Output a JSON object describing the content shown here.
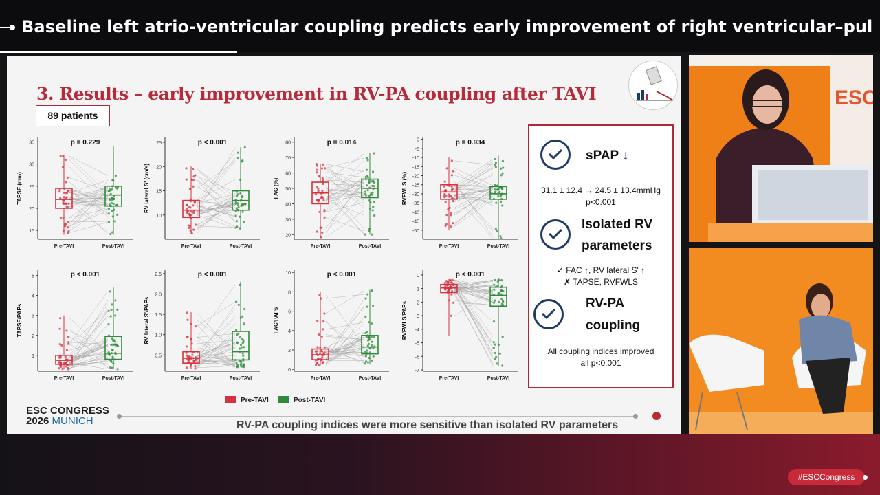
{
  "header": {
    "title": "Baseline left atrio-ventricular coupling predicts early improvement of right ventricular–pulmonary …"
  },
  "slide": {
    "title": "3. Results – early improvement in RV-PA coupling after TAVI",
    "patients": "89 patients",
    "legend": {
      "pre": "Pre-TAVI",
      "post": "Post-TAVI"
    },
    "footer_brand_line1": "ESC CONGRESS",
    "footer_brand_year": "2026",
    "footer_brand_city": "MUNICH",
    "footer_text": "RV-PA coupling indices were more sensitive than isolated RV parameters",
    "summary": {
      "h1": "sPAP",
      "h1_arrow": "↓",
      "t1a": "31.1 ± 12.4 → 24.5 ± 13.4mmHg",
      "t1b": "p<0.001",
      "h2a": "Isolated RV",
      "h2b": "parameters",
      "t2a": "✓ FAC ↑, RV lateral S' ↑",
      "t2b": "✗ TAPSE, RVFWLS",
      "h3a": "RV-PA",
      "h3b": "coupling",
      "t3a": "All coupling indices improved",
      "t3b": "all p<0.001"
    }
  },
  "colors": {
    "pre": "#d6323f",
    "post": "#2f8a3a",
    "accent": "#b52b3a",
    "navy": "#1e3a66"
  },
  "hashtag": "#ESCCongress",
  "chart_data": [
    {
      "type": "scatter",
      "title": "p = 0.229",
      "ylabel": "TAPSE (mm)",
      "categories": [
        "Pre-TAVI",
        "Post-TAVI"
      ],
      "yticks": [
        "15",
        "20",
        "25",
        "30",
        "35"
      ],
      "ylim": [
        13,
        36
      ],
      "box": [
        {
          "q1": 20,
          "med": 22,
          "q3": 24.5,
          "lo": 14,
          "hi": 32
        },
        {
          "q1": 20.5,
          "med": 23,
          "q3": 25,
          "lo": 14,
          "hi": 34
        }
      ]
    },
    {
      "type": "scatter",
      "title": "p < 0.001",
      "ylabel": "RV lateral S' (cm/s)",
      "categories": [
        "Pre-TAVI",
        "Post-TAVI"
      ],
      "yticks": [
        "10",
        "15",
        "20",
        "25"
      ],
      "ylim": [
        5,
        26
      ],
      "box": [
        {
          "q1": 9.5,
          "med": 11,
          "q3": 13,
          "lo": 6,
          "hi": 20
        },
        {
          "q1": 11,
          "med": 13,
          "q3": 15,
          "lo": 7,
          "hi": 24
        }
      ]
    },
    {
      "type": "scatter",
      "title": "p = 0.014",
      "ylabel": "FAC (%)",
      "categories": [
        "Pre-TAVI",
        "Post-TAVI"
      ],
      "yticks": [
        "20",
        "30",
        "40",
        "50",
        "60",
        "70",
        "80"
      ],
      "ylim": [
        17,
        83
      ],
      "box": [
        {
          "q1": 40,
          "med": 47,
          "q3": 54,
          "lo": 18,
          "hi": 66
        },
        {
          "q1": 44,
          "med": 50,
          "q3": 56,
          "lo": 20,
          "hi": 73
        }
      ]
    },
    {
      "type": "scatter",
      "title": "p = 0.934",
      "ylabel": "RVFWLS (%)",
      "categories": [
        "Pre-TAVI",
        "Post-TAVI"
      ],
      "yticks": [
        "0",
        "-5",
        "-10",
        "-15",
        "-20",
        "-25",
        "-30",
        "-35",
        "-40",
        "-45",
        "-50"
      ],
      "ylim": [
        -55,
        1
      ],
      "box": [
        {
          "q1": -33,
          "med": -29,
          "q3": -25,
          "lo": -50,
          "hi": -10
        },
        {
          "q1": -33,
          "med": -30,
          "q3": -26,
          "lo": -55,
          "hi": -9
        }
      ]
    },
    {
      "type": "scatter",
      "title": "p < 0.001",
      "ylabel": "TAPSE/PAPs",
      "categories": [
        "Pre-TAVI",
        "Post-TAVI"
      ],
      "yticks": [
        "1",
        "2",
        "3",
        "4",
        "5"
      ],
      "ylim": [
        0.2,
        5.3
      ],
      "box": [
        {
          "q1": 0.55,
          "med": 0.75,
          "q3": 1.0,
          "lo": 0.3,
          "hi": 3.0
        },
        {
          "q1": 0.8,
          "med": 1.1,
          "q3": 1.95,
          "lo": 0.3,
          "hi": 4.4
        }
      ]
    },
    {
      "type": "scatter",
      "title": "p < 0.001",
      "ylabel": "RV lateral S'/PAPs",
      "categories": [
        "Pre-TAVI",
        "Post-TAVI"
      ],
      "yticks": [
        "0.5",
        "1.0",
        "1.5",
        "2.0",
        "2.5"
      ],
      "ylim": [
        0.1,
        2.6
      ],
      "box": [
        {
          "q1": 0.3,
          "med": 0.42,
          "q3": 0.58,
          "lo": 0.15,
          "hi": 1.55
        },
        {
          "q1": 0.38,
          "med": 0.58,
          "q3": 1.08,
          "lo": 0.2,
          "hi": 2.3
        }
      ]
    },
    {
      "type": "scatter",
      "title": "p < 0.001",
      "ylabel": "FAC/PAPs",
      "categories": [
        "Pre-TAVI",
        "Post-TAVI"
      ],
      "yticks": [
        "0",
        "2",
        "4",
        "6",
        "8",
        "10"
      ],
      "ylim": [
        -0.2,
        10.3
      ],
      "box": [
        {
          "q1": 1.0,
          "med": 1.5,
          "q3": 2.1,
          "lo": 0.4,
          "hi": 8.0
        },
        {
          "q1": 1.6,
          "med": 2.3,
          "q3": 3.5,
          "lo": 0.5,
          "hi": 8.2
        }
      ]
    },
    {
      "type": "scatter",
      "title": "p < 0.001",
      "ylabel": "RVFWLS/PAPs",
      "categories": [
        "Pre-TAVI",
        "Post-TAVI"
      ],
      "yticks": [
        "0",
        "-1",
        "-2",
        "-3",
        "-4",
        "-5",
        "-6",
        "-7"
      ],
      "ylim": [
        -7.1,
        0.4
      ],
      "box": [
        {
          "q1": -1.3,
          "med": -0.95,
          "q3": -0.7,
          "lo": -4.5,
          "hi": -0.3
        },
        {
          "q1": -2.3,
          "med": -1.5,
          "q3": -0.9,
          "lo": -6.7,
          "hi": -0.3
        }
      ]
    }
  ]
}
